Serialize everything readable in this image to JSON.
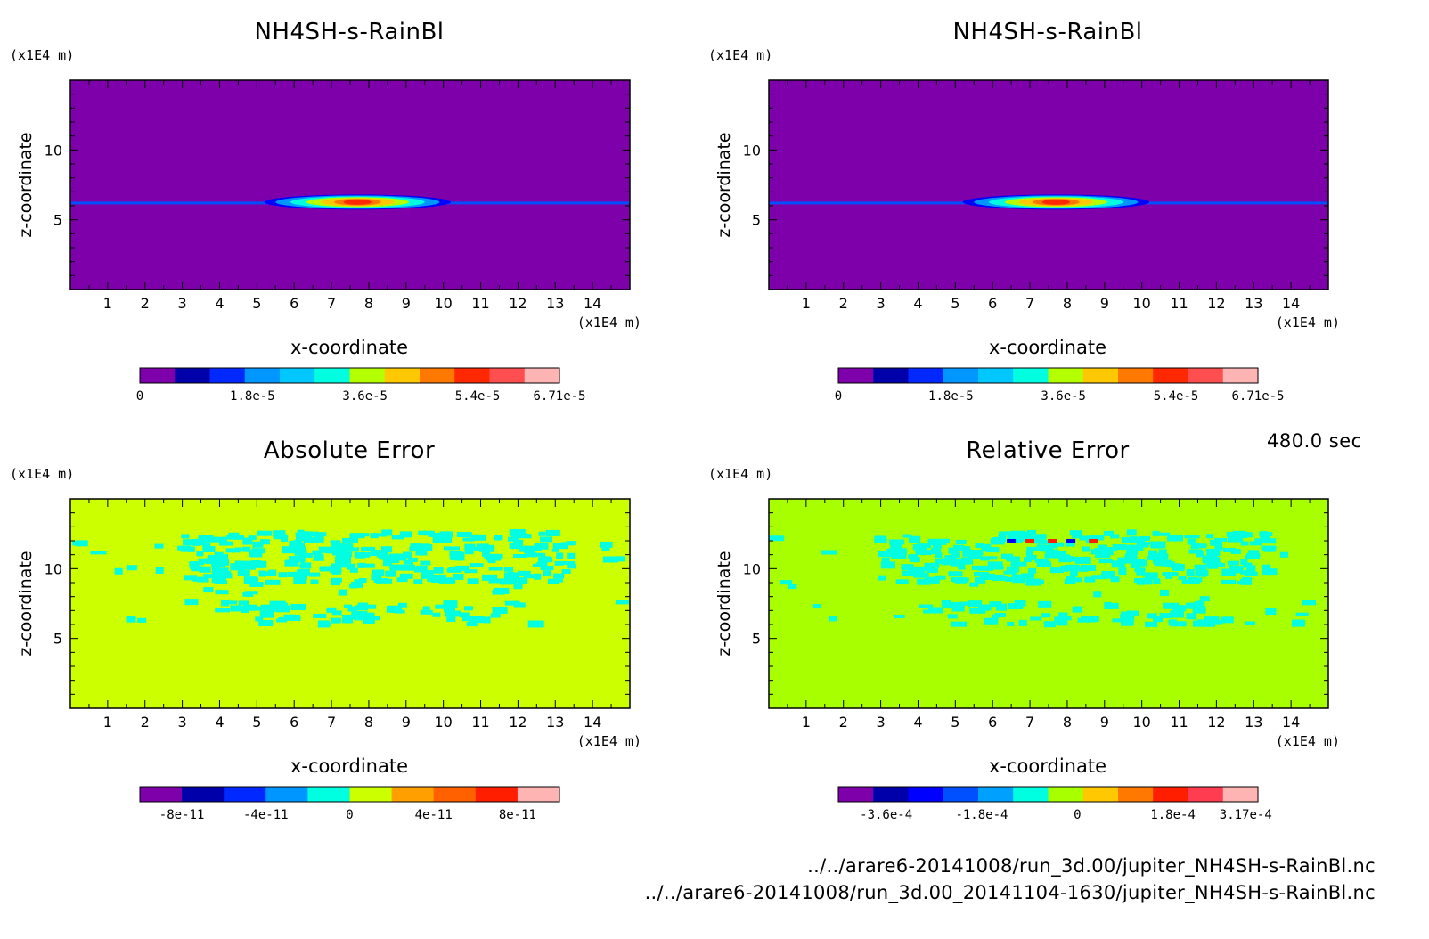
{
  "footer": {
    "time": "480.0 sec",
    "file_1": "../../arare6-20141008/run_3d.00/jupiter_NH4SH-s-RainBl.nc",
    "file_2": "../../arare6-20141008/run_3d.00_20141104-1630/jupiter_NH4SH-s-RainBl.nc"
  },
  "chart_data": [
    {
      "type": "heatmap",
      "title": "NH4SH-s-RainBl",
      "xlabel": "x-coordinate",
      "ylabel": "z-coordinate",
      "x_unit": "(x1E4 m)",
      "y_unit": "(x1E4 m)",
      "xlim": [
        0,
        15
      ],
      "ylim": [
        0,
        15
      ],
      "x_ticks": [
        1,
        2,
        3,
        4,
        5,
        6,
        7,
        8,
        9,
        10,
        11,
        12,
        13,
        14
      ],
      "y_ticks": [
        5,
        10
      ],
      "background_color": "#7d00aa",
      "field": "thin layer near z=6.2 spanning x=0-15; blob centered x~7.7 (x=5-10), peak ~6.71e-5",
      "layer_z": 6.2,
      "blob": {
        "x_min": 5.0,
        "x_max": 10.0,
        "x_center": 7.7,
        "z_min": 6.0,
        "z_max": 6.8,
        "peak": 6.71e-05
      },
      "colorbar": {
        "colors": [
          "#7d00aa",
          "#0000aa",
          "#0028ff",
          "#0096ff",
          "#00c8ff",
          "#00ffe0",
          "#b4ff00",
          "#ffc800",
          "#ff7800",
          "#ff2800",
          "#ff4e50",
          "#ffb4b4"
        ],
        "tick_labels": [
          "0",
          "1.8e-5",
          "3.6e-5",
          "5.4e-5",
          "6.71e-5"
        ],
        "tick_values": [
          0,
          1.8e-05,
          3.6e-05,
          5.4e-05,
          6.71e-05
        ],
        "min": 0,
        "max": 6.71e-05
      }
    },
    {
      "type": "heatmap",
      "title": "NH4SH-s-RainBl",
      "xlabel": "x-coordinate",
      "ylabel": "z-coordinate",
      "x_unit": "(x1E4 m)",
      "y_unit": "(x1E4 m)",
      "xlim": [
        0,
        15
      ],
      "ylim": [
        0,
        15
      ],
      "x_ticks": [
        1,
        2,
        3,
        4,
        5,
        6,
        7,
        8,
        9,
        10,
        11,
        12,
        13,
        14
      ],
      "y_ticks": [
        5,
        10
      ],
      "background_color": "#7d00aa",
      "field": "thin layer near z=6.2 spanning x=0-15; blob centered x~7.7 (x=5-10), peak ~6.71e-5",
      "layer_z": 6.2,
      "blob": {
        "x_min": 5.0,
        "x_max": 10.0,
        "x_center": 7.7,
        "z_min": 6.0,
        "z_max": 6.8,
        "peak": 6.71e-05
      },
      "colorbar": {
        "colors": [
          "#7d00aa",
          "#0000aa",
          "#0028ff",
          "#0096ff",
          "#00c8ff",
          "#00ffe0",
          "#b4ff00",
          "#ffc800",
          "#ff7800",
          "#ff2800",
          "#ff4e50",
          "#ffb4b4"
        ],
        "tick_labels": [
          "0",
          "1.8e-5",
          "3.6e-5",
          "5.4e-5",
          "6.71e-5"
        ],
        "tick_values": [
          0,
          1.8e-05,
          3.6e-05,
          5.4e-05,
          6.71e-05
        ],
        "min": 0,
        "max": 6.71e-05
      }
    },
    {
      "type": "heatmap",
      "title": "Absolute Error",
      "xlabel": "x-coordinate",
      "ylabel": "z-coordinate",
      "x_unit": "(x1E4 m)",
      "y_unit": "(x1E4 m)",
      "xlim": [
        0,
        15
      ],
      "ylim": [
        0,
        15
      ],
      "x_ticks": [
        1,
        2,
        3,
        4,
        5,
        6,
        7,
        8,
        9,
        10,
        11,
        12,
        13,
        14
      ],
      "y_ticks": [
        5,
        10
      ],
      "background_color": "#ccff00",
      "field": "mostly 0 with scattered small negative patches (cyan) between z~6 and z~12.5",
      "patch_color": "#00ffe0",
      "patch_value": -1e-11,
      "colorbar": {
        "colors": [
          "#7d00aa",
          "#0000aa",
          "#0028ff",
          "#0096ff",
          "#00ffe0",
          "#ccff00",
          "#ffa000",
          "#ff6000",
          "#ff1e00",
          "#ffb4b4"
        ],
        "tick_labels": [
          "-8e-11",
          "-4e-11",
          "0",
          "4e-11",
          "8e-11"
        ],
        "tick_values": [
          -8e-11,
          -4e-11,
          0,
          4e-11,
          8e-11
        ],
        "min": -1e-10,
        "max": 1e-10
      }
    },
    {
      "type": "heatmap",
      "title": "Relative Error",
      "xlabel": "x-coordinate",
      "ylabel": "z-coordinate",
      "x_unit": "(x1E4 m)",
      "y_unit": "(x1E4 m)",
      "xlim": [
        0,
        15
      ],
      "ylim": [
        0,
        15
      ],
      "x_ticks": [
        1,
        2,
        3,
        4,
        5,
        6,
        7,
        8,
        9,
        10,
        11,
        12,
        13,
        14
      ],
      "y_ticks": [
        5,
        10
      ],
      "background_color": "#a8ff00",
      "field": "mostly 0 with scattered small negative patches (cyan); a few red/blue extreme points near z~12, x~6.5-9",
      "patch_color": "#00ffe0",
      "extremes": [
        {
          "x": 6.5,
          "z": 12.0,
          "value": -0.0003
        },
        {
          "x": 7.0,
          "z": 12.0,
          "value": 0.00028
        },
        {
          "x": 7.6,
          "z": 12.0,
          "value": 0.000317
        },
        {
          "x": 8.1,
          "z": 12.0,
          "value": -0.0003
        },
        {
          "x": 8.7,
          "z": 12.0,
          "value": 0.00028
        }
      ],
      "colorbar": {
        "colors": [
          "#7d00aa",
          "#0000aa",
          "#0000ff",
          "#0050ff",
          "#00a0ff",
          "#00ffe0",
          "#a8ff00",
          "#ffc800",
          "#ff7800",
          "#ff1e00",
          "#ff3c50",
          "#ffb4b4"
        ],
        "tick_labels": [
          "-3.6e-4",
          "-1.8e-4",
          "0",
          "1.8e-4",
          "3.17e-4"
        ],
        "tick_values": [
          -0.00036,
          -0.00018,
          0,
          0.00018,
          0.000317
        ],
        "min": -0.00045,
        "max": 0.00034
      }
    }
  ]
}
